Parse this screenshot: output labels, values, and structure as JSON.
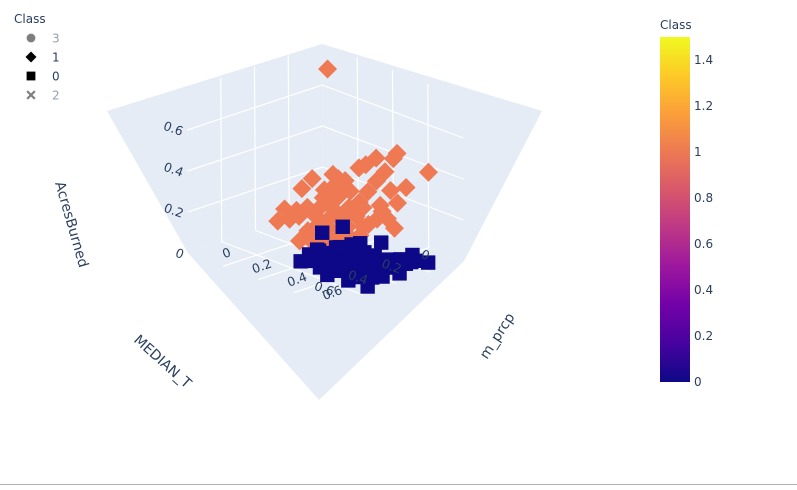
{
  "chart_data": {
    "type": "scatter3d",
    "axes": {
      "x": {
        "title": "MEDIAN_T",
        "ticks": [
          "0",
          "0.2",
          "0.4",
          "0.6"
        ]
      },
      "y": {
        "title": "m_prcp",
        "ticks": [
          "0",
          "0.2",
          "0.4",
          "0.6"
        ]
      },
      "z": {
        "title": "AcresBurned",
        "ticks": [
          "0",
          "0.2",
          "0.4",
          "0.6"
        ]
      }
    },
    "legend": {
      "title": "Class",
      "placement": "top-left",
      "items": [
        {
          "name": "3",
          "symbol": "circle",
          "faded": true
        },
        {
          "name": "1",
          "symbol": "diamond",
          "faded": false
        },
        {
          "name": "0",
          "symbol": "square",
          "faded": false
        },
        {
          "name": "2",
          "symbol": "x",
          "faded": true
        }
      ]
    },
    "colorbar": {
      "title": "Class",
      "range": [
        0,
        1.5
      ],
      "ticks": [
        "0",
        "0.2",
        "0.4",
        "0.6",
        "0.8",
        "1",
        "1.2",
        "1.4"
      ],
      "colors": [
        "#0d0887",
        "#46039f",
        "#7201a8",
        "#9c179e",
        "#bd3786",
        "#d8576b",
        "#ed7953",
        "#fb9f3a",
        "#fdca26",
        "#f0f921"
      ]
    },
    "series": [
      {
        "name": "1",
        "symbol": "diamond",
        "color": "#ee7953",
        "points": [
          [
            0.05,
            0.05,
            0.08
          ],
          [
            0.25,
            0.05,
            0.03
          ],
          [
            0.24,
            0.08,
            0.08
          ],
          [
            0.3,
            0.07,
            0.1
          ],
          [
            0.32,
            0.05,
            0.04
          ],
          [
            0.22,
            0.12,
            0.1
          ],
          [
            0.2,
            0.18,
            0.12
          ],
          [
            0.28,
            0.15,
            0.22
          ],
          [
            0.22,
            0.22,
            0.22
          ],
          [
            0.25,
            0.18,
            0.27
          ],
          [
            0.18,
            0.25,
            0.25
          ],
          [
            0.15,
            0.3,
            0.22
          ],
          [
            0.2,
            0.28,
            0.2
          ],
          [
            0.3,
            0.2,
            0.15
          ],
          [
            0.35,
            0.2,
            0.12
          ],
          [
            0.26,
            0.3,
            0.17
          ],
          [
            0.22,
            0.3,
            0.3
          ],
          [
            0.3,
            0.3,
            0.1
          ],
          [
            0.28,
            0.35,
            0.05
          ],
          [
            0.33,
            0.27,
            0.08
          ],
          [
            0.35,
            0.3,
            0.1
          ],
          [
            0.38,
            0.3,
            0.04
          ],
          [
            0.33,
            0.35,
            0.06
          ],
          [
            0.3,
            0.4,
            0.05
          ],
          [
            0.2,
            0.35,
            0.15
          ],
          [
            0.25,
            0.38,
            0.1
          ],
          [
            0.18,
            0.4,
            0.18
          ],
          [
            0.22,
            0.4,
            0.15
          ],
          [
            0.15,
            0.35,
            0.35
          ],
          [
            0.15,
            0.4,
            0.25
          ],
          [
            0.12,
            0.42,
            0.3
          ],
          [
            0.28,
            0.42,
            0.05
          ],
          [
            0.25,
            0.45,
            0.08
          ],
          [
            0.2,
            0.45,
            0.12
          ],
          [
            0.1,
            0.45,
            0.35
          ],
          [
            0.18,
            0.48,
            0.15
          ],
          [
            0.15,
            0.48,
            0.18
          ],
          [
            0.22,
            0.32,
            0.25
          ],
          [
            0.08,
            0.5,
            0.45
          ],
          [
            0.05,
            0.45,
            0.4
          ],
          [
            0.08,
            0.55,
            0.3
          ],
          [
            0.1,
            0.52,
            0.22
          ],
          [
            0.15,
            0.55,
            0.12
          ],
          [
            0.26,
            0.36,
            0.12
          ],
          [
            0.24,
            0.34,
            0.14
          ],
          [
            0.3,
            0.34,
            0.08
          ],
          [
            0.28,
            0.3,
            0.12
          ],
          [
            0.34,
            0.24,
            0.06
          ],
          [
            0.2,
            0.42,
            0.1
          ],
          [
            0.18,
            0.38,
            0.2
          ],
          [
            0.14,
            0.46,
            0.2
          ],
          [
            0.12,
            0.5,
            0.28
          ],
          [
            0.16,
            0.52,
            0.16
          ],
          [
            0.26,
            0.4,
            0.06
          ],
          [
            0.22,
            0.36,
            0.18
          ],
          [
            0.32,
            0.32,
            0.06
          ],
          [
            0.36,
            0.26,
            0.04
          ],
          [
            0.1,
            0.4,
            0.4
          ],
          [
            0.12,
            0.36,
            0.36
          ],
          [
            0.2,
            0.25,
            0.3
          ],
          [
            0.02,
            0.62,
            0.38
          ],
          [
            0.15,
            0.2,
            0.2
          ],
          [
            0.4,
            0.25,
            0.03
          ],
          [
            0.36,
            0.35,
            0.03
          ],
          [
            0.18,
            0.3,
            0.28
          ],
          [
            0.24,
            0.26,
            0.2
          ],
          [
            0.3,
            0.25,
            0.12
          ],
          [
            0.34,
            0.32,
            0.08
          ],
          [
            0.02,
            0.05,
            0.7
          ]
        ]
      },
      {
        "name": "0",
        "symbol": "square",
        "color": "#0d0887",
        "points": [
          [
            0.4,
            0.35,
            0.02
          ],
          [
            0.42,
            0.38,
            0.03
          ],
          [
            0.45,
            0.4,
            0.02
          ],
          [
            0.38,
            0.42,
            0.02
          ],
          [
            0.4,
            0.45,
            0.03
          ],
          [
            0.44,
            0.45,
            0.03
          ],
          [
            0.36,
            0.48,
            0.02
          ],
          [
            0.42,
            0.5,
            0.02
          ],
          [
            0.46,
            0.5,
            0.04
          ],
          [
            0.35,
            0.52,
            0.02
          ],
          [
            0.4,
            0.55,
            0.03
          ],
          [
            0.45,
            0.55,
            0.02
          ],
          [
            0.38,
            0.58,
            0.04
          ],
          [
            0.42,
            0.6,
            0.03
          ],
          [
            0.48,
            0.58,
            0.02
          ],
          [
            0.35,
            0.62,
            0.03
          ],
          [
            0.4,
            0.65,
            0.04
          ],
          [
            0.45,
            0.65,
            0.02
          ],
          [
            0.3,
            0.6,
            0.02
          ],
          [
            0.32,
            0.65,
            0.03
          ],
          [
            0.36,
            0.68,
            0.02
          ],
          [
            0.44,
            0.7,
            0.03
          ],
          [
            0.48,
            0.62,
            0.06
          ],
          [
            0.5,
            0.52,
            0.05
          ],
          [
            0.52,
            0.45,
            0.03
          ],
          [
            0.3,
            0.5,
            0.02
          ],
          [
            0.33,
            0.55,
            0.04
          ],
          [
            0.28,
            0.55,
            0.02
          ],
          [
            0.26,
            0.62,
            0.02
          ],
          [
            0.28,
            0.68,
            0.02
          ],
          [
            0.32,
            0.72,
            0.03
          ],
          [
            0.38,
            0.72,
            0.05
          ],
          [
            0.42,
            0.74,
            0.02
          ],
          [
            0.22,
            0.65,
            0.02
          ],
          [
            0.24,
            0.7,
            0.02
          ],
          [
            0.2,
            0.72,
            0.03
          ],
          [
            0.55,
            0.4,
            0.02
          ],
          [
            0.5,
            0.4,
            0.04
          ],
          [
            0.5,
            0.68,
            0.02
          ],
          [
            0.46,
            0.72,
            0.02
          ],
          [
            0.36,
            0.58,
            0.07
          ],
          [
            0.4,
            0.5,
            0.08
          ],
          [
            0.3,
            0.45,
            0.05
          ],
          [
            0.34,
            0.4,
            0.03
          ],
          [
            0.16,
            0.75,
            0.02
          ],
          [
            0.18,
            0.68,
            0.04
          ],
          [
            0.26,
            0.75,
            0.05
          ],
          [
            0.34,
            0.76,
            0.02
          ],
          [
            0.44,
            0.62,
            0.05
          ],
          [
            0.48,
            0.48,
            0.02
          ],
          [
            0.52,
            0.6,
            0.03
          ],
          [
            0.54,
            0.5,
            0.02
          ],
          [
            0.38,
            0.64,
            0.06
          ],
          [
            0.42,
            0.56,
            0.05
          ],
          [
            0.32,
            0.6,
            0.05
          ],
          [
            0.28,
            0.48,
            0.06
          ],
          [
            0.36,
            0.44,
            0.05
          ],
          [
            0.55,
            0.78,
            0.02
          ],
          [
            0.26,
            0.58,
            0.09
          ],
          [
            0.38,
            0.36,
            0.1
          ],
          [
            0.3,
            0.4,
            0.12
          ],
          [
            0.58,
            0.58,
            0.02
          ],
          [
            0.56,
            0.68,
            0.02
          ]
        ]
      }
    ]
  }
}
